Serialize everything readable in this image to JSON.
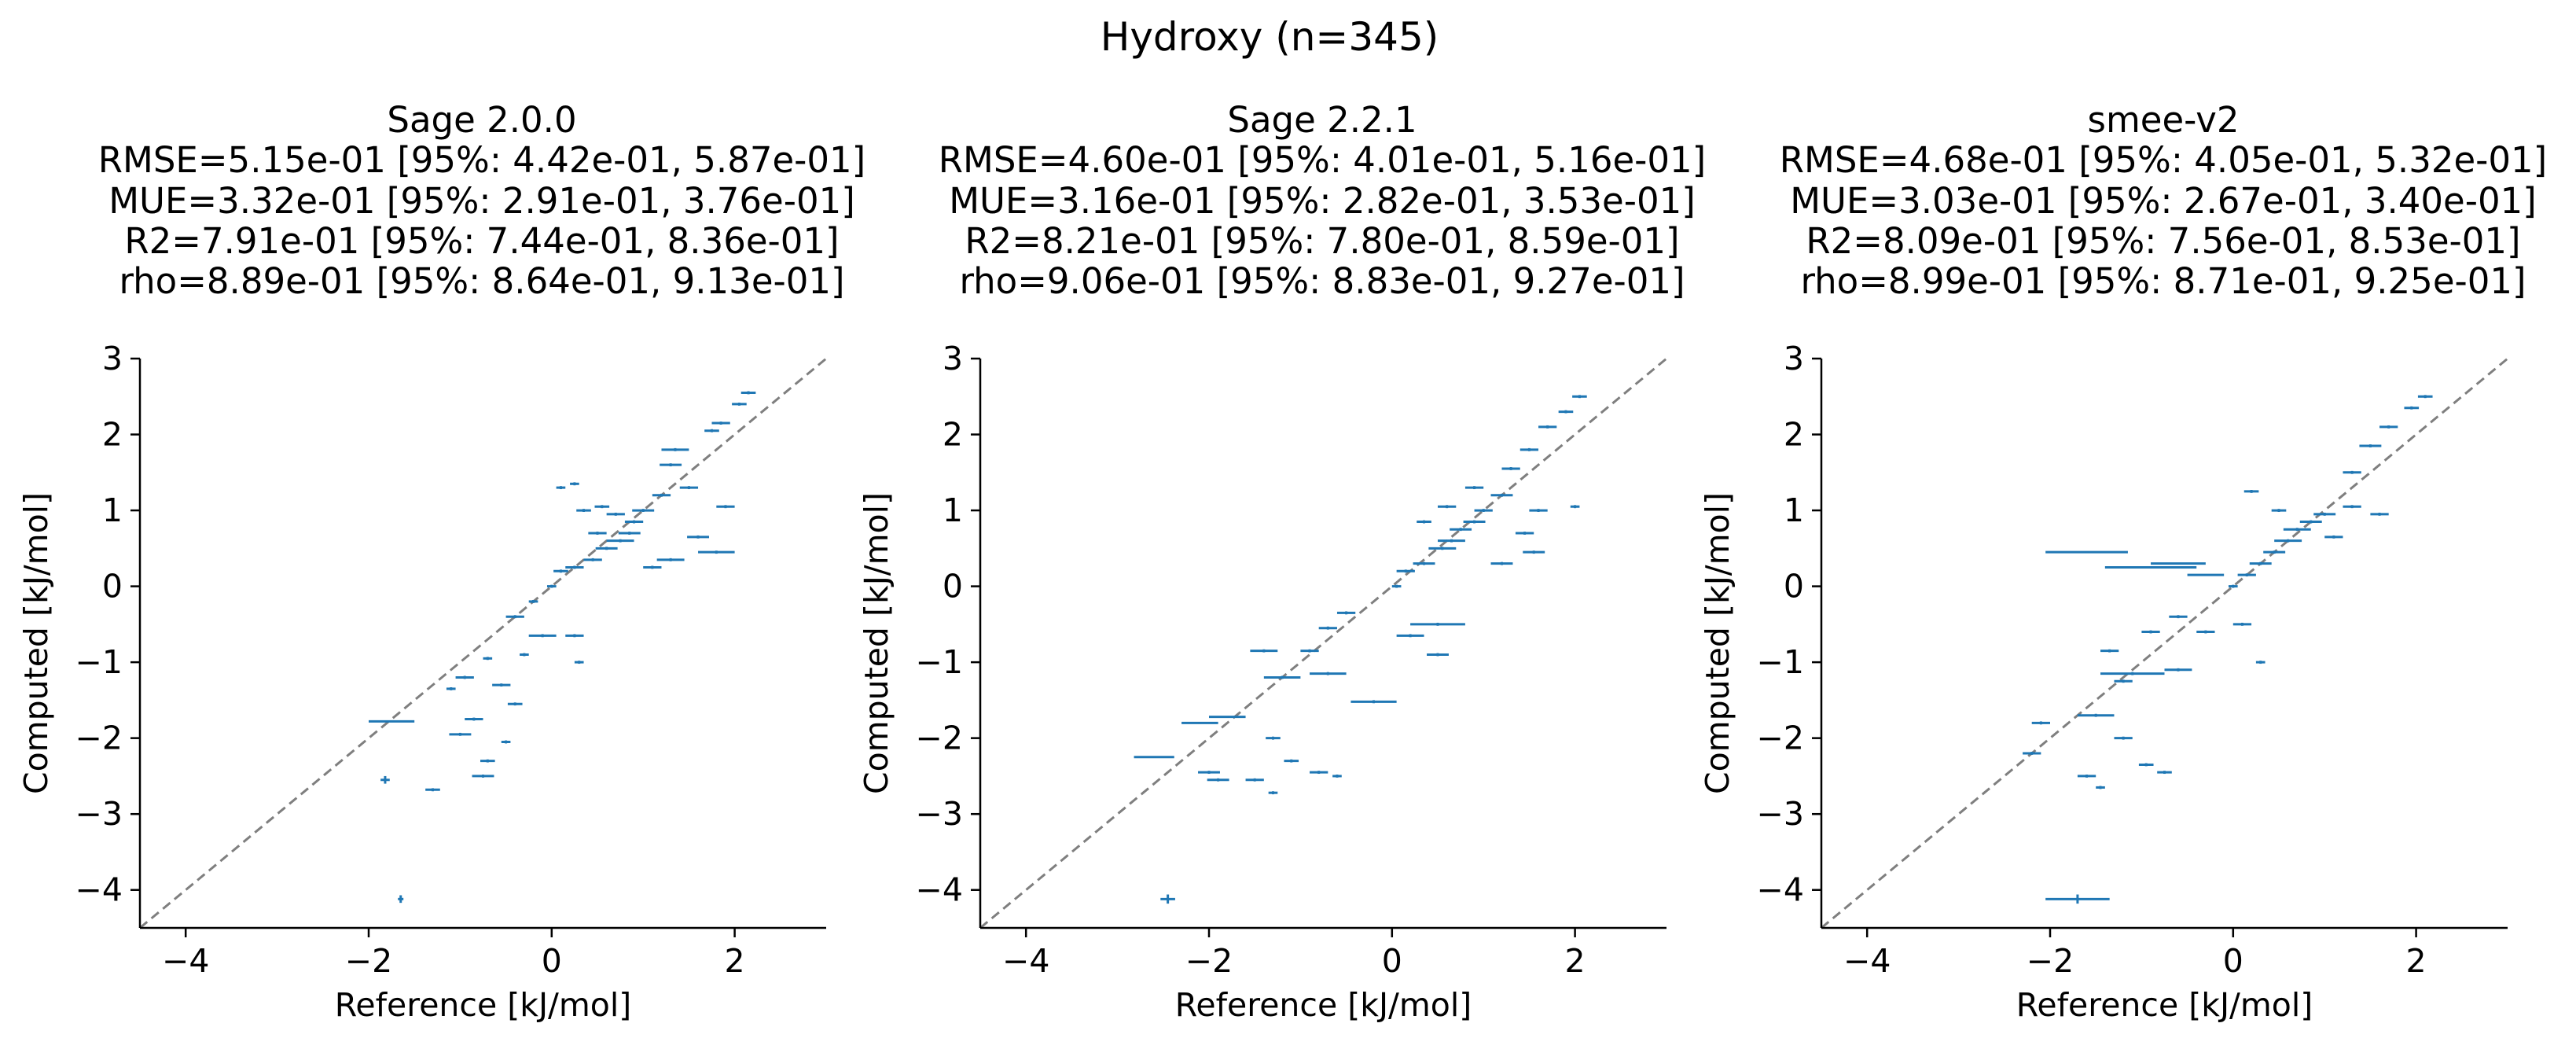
{
  "figure": {
    "title": "Hydroxy (n=345)"
  },
  "chart_data": [
    {
      "type": "scatter",
      "title": "Sage 2.0.0",
      "stats": [
        "RMSE=5.15e-01 [95%: 4.42e-01, 5.87e-01]",
        "MUE=3.32e-01 [95%: 2.91e-01, 3.76e-01]",
        "R2=7.91e-01 [95%: 7.44e-01, 8.36e-01]",
        "rho=8.89e-01 [95%: 8.64e-01, 9.13e-01]"
      ],
      "xlabel": "Reference [kJ/mol]",
      "ylabel": "Computed [kJ/mol]",
      "xlim": [
        -4.5,
        3.0
      ],
      "ylim": [
        -4.5,
        3.0
      ],
      "xticks": [
        -4,
        -2,
        0,
        2
      ],
      "yticks": [
        -4,
        -3,
        -2,
        -1,
        0,
        1,
        2,
        3
      ],
      "diagonal": true,
      "color": "#1f77b4",
      "points": [
        {
          "x": -1.75,
          "y": -1.78,
          "xerr": 0.25,
          "yerr": 0.01
        },
        {
          "x": -1.65,
          "y": -4.12,
          "xerr": 0.03,
          "yerr": 0.05
        },
        {
          "x": -1.82,
          "y": -2.55,
          "xerr": 0.05,
          "yerr": 0.05
        },
        {
          "x": -1.3,
          "y": -2.68,
          "xerr": 0.08,
          "yerr": 0.02
        },
        {
          "x": -1.0,
          "y": -1.95,
          "xerr": 0.12,
          "yerr": 0.02
        },
        {
          "x": -0.85,
          "y": -1.75,
          "xerr": 0.1,
          "yerr": 0.02
        },
        {
          "x": -0.75,
          "y": -2.5,
          "xerr": 0.12,
          "yerr": 0.02
        },
        {
          "x": -0.7,
          "y": -2.3,
          "xerr": 0.08,
          "yerr": 0.02
        },
        {
          "x": -0.5,
          "y": -2.05,
          "xerr": 0.05,
          "yerr": 0.02
        },
        {
          "x": -0.4,
          "y": -1.55,
          "xerr": 0.08,
          "yerr": 0.02
        },
        {
          "x": -0.55,
          "y": -1.3,
          "xerr": 0.1,
          "yerr": 0.02
        },
        {
          "x": -0.95,
          "y": -1.2,
          "xerr": 0.1,
          "yerr": 0.02
        },
        {
          "x": -1.1,
          "y": -1.35,
          "xerr": 0.05,
          "yerr": 0.02
        },
        {
          "x": -0.7,
          "y": -0.95,
          "xerr": 0.05,
          "yerr": 0.02
        },
        {
          "x": -0.3,
          "y": -0.9,
          "xerr": 0.05,
          "yerr": 0.02
        },
        {
          "x": -0.1,
          "y": -0.65,
          "xerr": 0.15,
          "yerr": 0.02
        },
        {
          "x": 0.25,
          "y": -0.65,
          "xerr": 0.1,
          "yerr": 0.02
        },
        {
          "x": 0.3,
          "y": -1.0,
          "xerr": 0.05,
          "yerr": 0.02
        },
        {
          "x": -0.4,
          "y": -0.4,
          "xerr": 0.1,
          "yerr": 0.02
        },
        {
          "x": -0.2,
          "y": -0.2,
          "xerr": 0.05,
          "yerr": 0.02
        },
        {
          "x": 0.0,
          "y": 0.0,
          "xerr": 0.05,
          "yerr": 0.02
        },
        {
          "x": 0.1,
          "y": 0.2,
          "xerr": 0.08,
          "yerr": 0.02
        },
        {
          "x": 0.25,
          "y": 0.25,
          "xerr": 0.1,
          "yerr": 0.02
        },
        {
          "x": 0.45,
          "y": 0.35,
          "xerr": 0.1,
          "yerr": 0.02
        },
        {
          "x": 0.6,
          "y": 0.5,
          "xerr": 0.12,
          "yerr": 0.02
        },
        {
          "x": 0.75,
          "y": 0.6,
          "xerr": 0.15,
          "yerr": 0.02
        },
        {
          "x": 0.85,
          "y": 0.7,
          "xerr": 0.12,
          "yerr": 0.02
        },
        {
          "x": 0.9,
          "y": 0.85,
          "xerr": 0.1,
          "yerr": 0.02
        },
        {
          "x": 0.7,
          "y": 0.95,
          "xerr": 0.1,
          "yerr": 0.02
        },
        {
          "x": 0.55,
          "y": 1.05,
          "xerr": 0.08,
          "yerr": 0.02
        },
        {
          "x": 0.35,
          "y": 1.0,
          "xerr": 0.08,
          "yerr": 0.02
        },
        {
          "x": 0.5,
          "y": 0.7,
          "xerr": 0.1,
          "yerr": 0.02
        },
        {
          "x": 1.0,
          "y": 1.0,
          "xerr": 0.12,
          "yerr": 0.02
        },
        {
          "x": 1.2,
          "y": 1.2,
          "xerr": 0.1,
          "yerr": 0.02
        },
        {
          "x": 1.5,
          "y": 1.3,
          "xerr": 0.1,
          "yerr": 0.02
        },
        {
          "x": 1.9,
          "y": 1.05,
          "xerr": 0.1,
          "yerr": 0.02
        },
        {
          "x": 1.6,
          "y": 0.65,
          "xerr": 0.12,
          "yerr": 0.02
        },
        {
          "x": 1.8,
          "y": 0.45,
          "xerr": 0.2,
          "yerr": 0.02
        },
        {
          "x": 1.3,
          "y": 0.35,
          "xerr": 0.15,
          "yerr": 0.02
        },
        {
          "x": 1.1,
          "y": 0.25,
          "xerr": 0.1,
          "yerr": 0.02
        },
        {
          "x": 1.3,
          "y": 1.6,
          "xerr": 0.12,
          "yerr": 0.02
        },
        {
          "x": 1.35,
          "y": 1.8,
          "xerr": 0.15,
          "yerr": 0.02
        },
        {
          "x": 1.75,
          "y": 2.05,
          "xerr": 0.08,
          "yerr": 0.02
        },
        {
          "x": 1.85,
          "y": 2.15,
          "xerr": 0.1,
          "yerr": 0.02
        },
        {
          "x": 2.05,
          "y": 2.4,
          "xerr": 0.08,
          "yerr": 0.02
        },
        {
          "x": 2.15,
          "y": 2.55,
          "xerr": 0.08,
          "yerr": 0.02
        },
        {
          "x": 0.1,
          "y": 1.3,
          "xerr": 0.05,
          "yerr": 0.02
        },
        {
          "x": 0.25,
          "y": 1.35,
          "xerr": 0.05,
          "yerr": 0.02
        }
      ]
    },
    {
      "type": "scatter",
      "title": "Sage 2.2.1",
      "stats": [
        "RMSE=4.60e-01 [95%: 4.01e-01, 5.16e-01]",
        "MUE=3.16e-01 [95%: 2.82e-01, 3.53e-01]",
        "R2=8.21e-01 [95%: 7.80e-01, 8.59e-01]",
        "rho=9.06e-01 [95%: 8.83e-01, 9.27e-01]"
      ],
      "xlabel": "Reference [kJ/mol]",
      "ylabel": "Computed [kJ/mol]",
      "xlim": [
        -4.5,
        3.0
      ],
      "ylim": [
        -4.5,
        3.0
      ],
      "xticks": [
        -4,
        -2,
        0,
        2
      ],
      "yticks": [
        -4,
        -3,
        -2,
        -1,
        0,
        1,
        2,
        3
      ],
      "diagonal": true,
      "color": "#1f77b4",
      "points": [
        {
          "x": -2.45,
          "y": -4.12,
          "xerr": 0.08,
          "yerr": 0.06
        },
        {
          "x": -2.6,
          "y": -2.25,
          "xerr": 0.22,
          "yerr": 0.01
        },
        {
          "x": -2.1,
          "y": -1.8,
          "xerr": 0.2,
          "yerr": 0.01
        },
        {
          "x": -1.8,
          "y": -1.72,
          "xerr": 0.2,
          "yerr": 0.01
        },
        {
          "x": -2.0,
          "y": -2.45,
          "xerr": 0.12,
          "yerr": 0.02
        },
        {
          "x": -1.9,
          "y": -2.55,
          "xerr": 0.12,
          "yerr": 0.02
        },
        {
          "x": -1.5,
          "y": -2.55,
          "xerr": 0.1,
          "yerr": 0.02
        },
        {
          "x": -1.3,
          "y": -2.72,
          "xerr": 0.05,
          "yerr": 0.02
        },
        {
          "x": -1.1,
          "y": -2.3,
          "xerr": 0.08,
          "yerr": 0.02
        },
        {
          "x": -0.8,
          "y": -2.45,
          "xerr": 0.1,
          "yerr": 0.02
        },
        {
          "x": -0.6,
          "y": -2.5,
          "xerr": 0.05,
          "yerr": 0.02
        },
        {
          "x": -1.3,
          "y": -2.0,
          "xerr": 0.08,
          "yerr": 0.02
        },
        {
          "x": -1.2,
          "y": -1.2,
          "xerr": 0.2,
          "yerr": 0.02
        },
        {
          "x": -0.7,
          "y": -1.15,
          "xerr": 0.2,
          "yerr": 0.02
        },
        {
          "x": -0.2,
          "y": -1.52,
          "xerr": 0.25,
          "yerr": 0.02
        },
        {
          "x": -1.4,
          "y": -0.85,
          "xerr": 0.15,
          "yerr": 0.02
        },
        {
          "x": -0.9,
          "y": -0.85,
          "xerr": 0.1,
          "yerr": 0.02
        },
        {
          "x": -0.7,
          "y": -0.55,
          "xerr": 0.1,
          "yerr": 0.02
        },
        {
          "x": -0.5,
          "y": -0.35,
          "xerr": 0.1,
          "yerr": 0.02
        },
        {
          "x": 0.5,
          "y": -0.5,
          "xerr": 0.3,
          "yerr": 0.02
        },
        {
          "x": 0.2,
          "y": -0.65,
          "xerr": 0.15,
          "yerr": 0.02
        },
        {
          "x": 0.5,
          "y": -0.9,
          "xerr": 0.12,
          "yerr": 0.02
        },
        {
          "x": 0.05,
          "y": 0.0,
          "xerr": 0.05,
          "yerr": 0.02
        },
        {
          "x": 0.15,
          "y": 0.2,
          "xerr": 0.1,
          "yerr": 0.02
        },
        {
          "x": 0.35,
          "y": 0.3,
          "xerr": 0.12,
          "yerr": 0.02
        },
        {
          "x": 0.55,
          "y": 0.5,
          "xerr": 0.15,
          "yerr": 0.02
        },
        {
          "x": 0.65,
          "y": 0.6,
          "xerr": 0.15,
          "yerr": 0.02
        },
        {
          "x": 0.75,
          "y": 0.75,
          "xerr": 0.12,
          "yerr": 0.02
        },
        {
          "x": 0.9,
          "y": 0.85,
          "xerr": 0.12,
          "yerr": 0.02
        },
        {
          "x": 1.0,
          "y": 1.0,
          "xerr": 0.1,
          "yerr": 0.02
        },
        {
          "x": 0.6,
          "y": 1.05,
          "xerr": 0.1,
          "yerr": 0.02
        },
        {
          "x": 0.35,
          "y": 0.85,
          "xerr": 0.08,
          "yerr": 0.02
        },
        {
          "x": 1.2,
          "y": 1.2,
          "xerr": 0.12,
          "yerr": 0.02
        },
        {
          "x": 1.6,
          "y": 1.0,
          "xerr": 0.1,
          "yerr": 0.02
        },
        {
          "x": 1.45,
          "y": 0.7,
          "xerr": 0.1,
          "yerr": 0.02
        },
        {
          "x": 1.55,
          "y": 0.45,
          "xerr": 0.12,
          "yerr": 0.02
        },
        {
          "x": 1.2,
          "y": 0.3,
          "xerr": 0.12,
          "yerr": 0.02
        },
        {
          "x": 1.3,
          "y": 1.55,
          "xerr": 0.1,
          "yerr": 0.02
        },
        {
          "x": 1.5,
          "y": 1.8,
          "xerr": 0.1,
          "yerr": 0.02
        },
        {
          "x": 1.7,
          "y": 2.1,
          "xerr": 0.1,
          "yerr": 0.02
        },
        {
          "x": 1.9,
          "y": 2.3,
          "xerr": 0.08,
          "yerr": 0.02
        },
        {
          "x": 2.05,
          "y": 2.5,
          "xerr": 0.08,
          "yerr": 0.02
        },
        {
          "x": 2.0,
          "y": 1.05,
          "xerr": 0.05,
          "yerr": 0.02
        },
        {
          "x": 0.9,
          "y": 1.3,
          "xerr": 0.1,
          "yerr": 0.02
        }
      ]
    },
    {
      "type": "scatter",
      "title": "smee-v2",
      "stats": [
        "RMSE=4.68e-01 [95%: 4.05e-01, 5.32e-01]",
        "MUE=3.03e-01 [95%: 2.67e-01, 3.40e-01]",
        "R2=8.09e-01 [95%: 7.56e-01, 8.53e-01]",
        "rho=8.99e-01 [95%: 8.71e-01, 9.25e-01]"
      ],
      "xlabel": "Reference [kJ/mol]",
      "ylabel": "Computed [kJ/mol]",
      "xlim": [
        -4.5,
        3.0
      ],
      "ylim": [
        -4.5,
        3.0
      ],
      "xticks": [
        -4,
        -2,
        0,
        2
      ],
      "yticks": [
        -4,
        -3,
        -2,
        -1,
        0,
        1,
        2,
        3
      ],
      "diagonal": true,
      "color": "#1f77b4",
      "points": [
        {
          "x": -1.7,
          "y": -4.12,
          "xerr": 0.35,
          "yerr": 0.06
        },
        {
          "x": -1.6,
          "y": 0.45,
          "xerr": 0.45,
          "yerr": 0.01
        },
        {
          "x": -0.9,
          "y": 0.25,
          "xerr": 0.5,
          "yerr": 0.01
        },
        {
          "x": -0.6,
          "y": 0.3,
          "xerr": 0.3,
          "yerr": 0.01
        },
        {
          "x": -0.3,
          "y": 0.15,
          "xerr": 0.2,
          "yerr": 0.01
        },
        {
          "x": -2.2,
          "y": -2.2,
          "xerr": 0.1,
          "yerr": 0.02
        },
        {
          "x": -2.1,
          "y": -1.8,
          "xerr": 0.1,
          "yerr": 0.02
        },
        {
          "x": -1.5,
          "y": -1.7,
          "xerr": 0.2,
          "yerr": 0.02
        },
        {
          "x": -1.6,
          "y": -2.5,
          "xerr": 0.1,
          "yerr": 0.02
        },
        {
          "x": -1.45,
          "y": -2.65,
          "xerr": 0.05,
          "yerr": 0.02
        },
        {
          "x": -0.95,
          "y": -2.35,
          "xerr": 0.08,
          "yerr": 0.02
        },
        {
          "x": -0.75,
          "y": -2.45,
          "xerr": 0.08,
          "yerr": 0.02
        },
        {
          "x": -1.2,
          "y": -2.0,
          "xerr": 0.1,
          "yerr": 0.02
        },
        {
          "x": -1.1,
          "y": -1.15,
          "xerr": 0.35,
          "yerr": 0.02
        },
        {
          "x": -0.6,
          "y": -1.1,
          "xerr": 0.15,
          "yerr": 0.02
        },
        {
          "x": -1.35,
          "y": -0.85,
          "xerr": 0.1,
          "yerr": 0.02
        },
        {
          "x": -1.2,
          "y": -1.25,
          "xerr": 0.1,
          "yerr": 0.02
        },
        {
          "x": -0.9,
          "y": -0.6,
          "xerr": 0.1,
          "yerr": 0.02
        },
        {
          "x": -0.6,
          "y": -0.4,
          "xerr": 0.1,
          "yerr": 0.02
        },
        {
          "x": -0.3,
          "y": -0.6,
          "xerr": 0.1,
          "yerr": 0.02
        },
        {
          "x": 0.1,
          "y": -0.5,
          "xerr": 0.1,
          "yerr": 0.02
        },
        {
          "x": 0.3,
          "y": -1.0,
          "xerr": 0.05,
          "yerr": 0.02
        },
        {
          "x": 0.0,
          "y": 0.0,
          "xerr": 0.05,
          "yerr": 0.02
        },
        {
          "x": 0.15,
          "y": 0.15,
          "xerr": 0.1,
          "yerr": 0.02
        },
        {
          "x": 0.3,
          "y": 0.3,
          "xerr": 0.12,
          "yerr": 0.02
        },
        {
          "x": 0.45,
          "y": 0.45,
          "xerr": 0.12,
          "yerr": 0.02
        },
        {
          "x": 0.6,
          "y": 0.6,
          "xerr": 0.15,
          "yerr": 0.02
        },
        {
          "x": 0.7,
          "y": 0.75,
          "xerr": 0.15,
          "yerr": 0.02
        },
        {
          "x": 0.85,
          "y": 0.85,
          "xerr": 0.12,
          "yerr": 0.02
        },
        {
          "x": 1.0,
          "y": 0.95,
          "xerr": 0.12,
          "yerr": 0.02
        },
        {
          "x": 0.5,
          "y": 1.0,
          "xerr": 0.08,
          "yerr": 0.02
        },
        {
          "x": 0.2,
          "y": 1.25,
          "xerr": 0.08,
          "yerr": 0.02
        },
        {
          "x": 1.3,
          "y": 1.05,
          "xerr": 0.1,
          "yerr": 0.02
        },
        {
          "x": 1.6,
          "y": 0.95,
          "xerr": 0.1,
          "yerr": 0.02
        },
        {
          "x": 1.3,
          "y": 1.5,
          "xerr": 0.1,
          "yerr": 0.02
        },
        {
          "x": 1.5,
          "y": 1.85,
          "xerr": 0.12,
          "yerr": 0.02
        },
        {
          "x": 1.7,
          "y": 2.1,
          "xerr": 0.1,
          "yerr": 0.02
        },
        {
          "x": 1.95,
          "y": 2.35,
          "xerr": 0.08,
          "yerr": 0.02
        },
        {
          "x": 2.1,
          "y": 2.5,
          "xerr": 0.08,
          "yerr": 0.02
        },
        {
          "x": 1.1,
          "y": 0.65,
          "xerr": 0.1,
          "yerr": 0.02
        }
      ]
    }
  ]
}
